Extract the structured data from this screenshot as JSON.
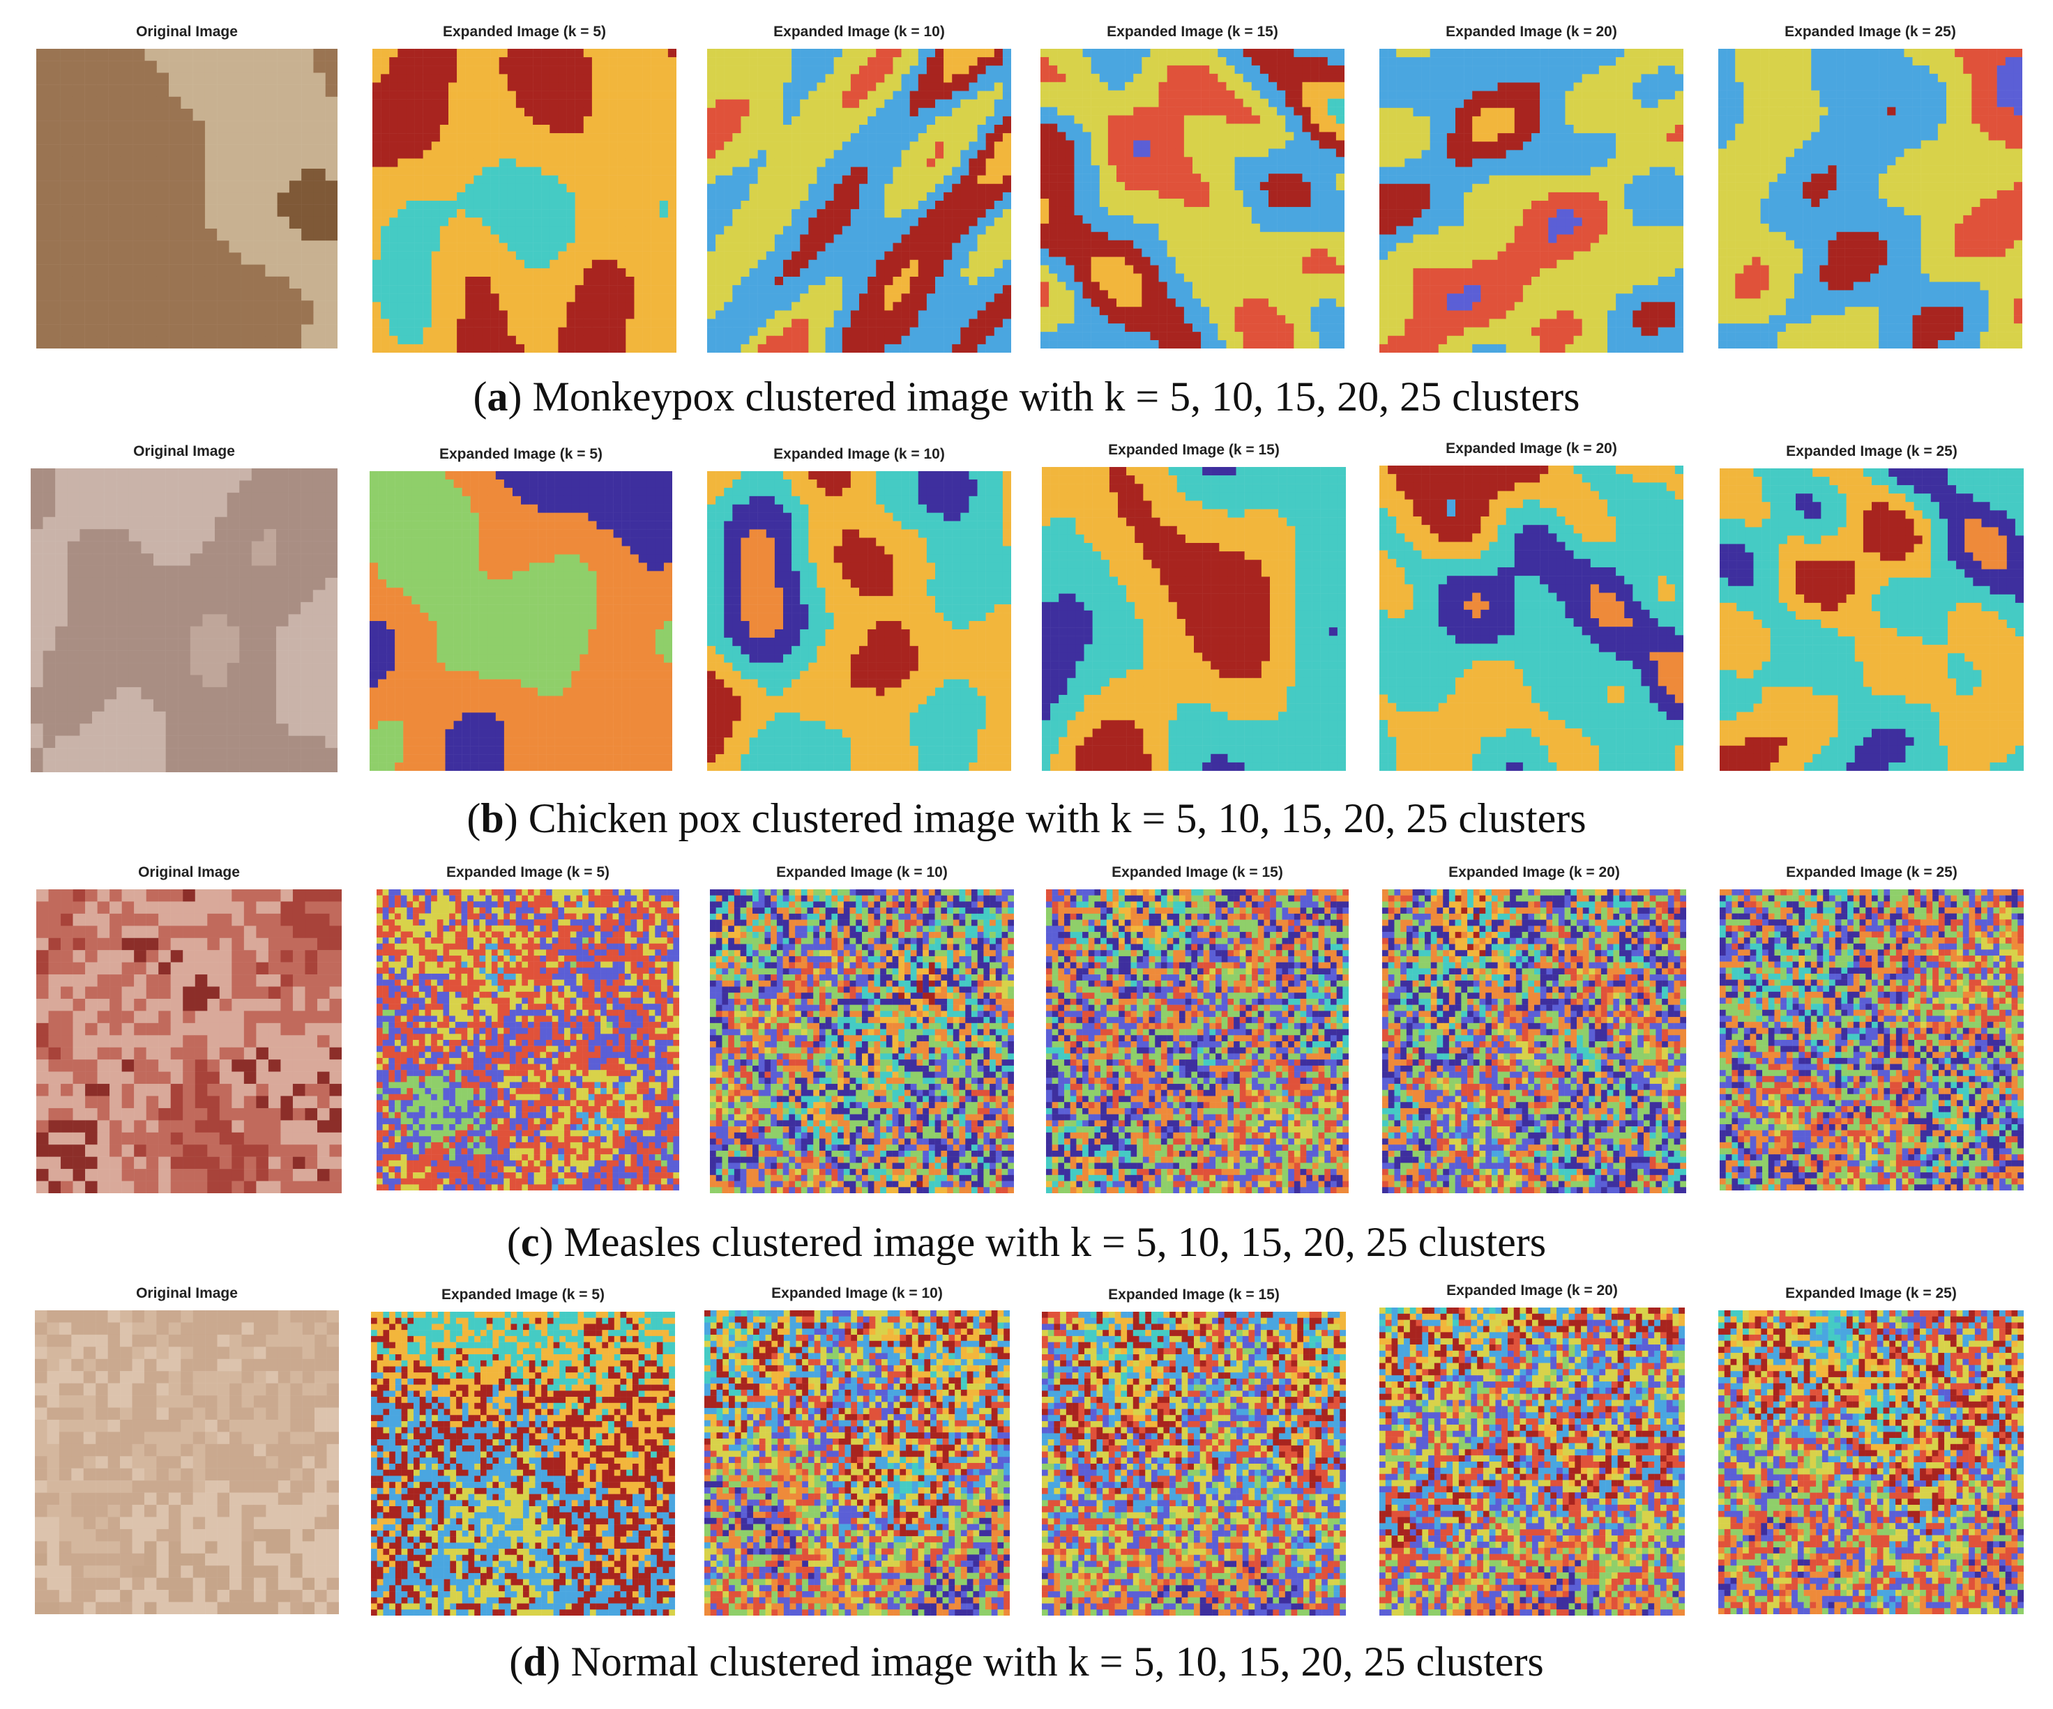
{
  "figure": {
    "rows": [
      {
        "id": "a",
        "letter": "a",
        "caption": " Monkeypox clustered image with k = 5, 10, 15, 20, 25 clusters",
        "original_title": "Original Image",
        "original_palette": [
          "#b89872",
          "#9a7452",
          "#c8b191",
          "#7f5937"
        ],
        "cluster_titles": [
          "Expanded Image (k = 5)",
          "Expanded Image (k = 10)",
          "Expanded Image (k = 15)",
          "Expanded Image (k = 20)",
          "Expanded Image (k = 25)"
        ]
      },
      {
        "id": "b",
        "letter": "b",
        "caption": " Chicken pox clustered image with k = 5, 10, 15, 20, 25 clusters",
        "original_title": "Original Image",
        "original_palette": [
          "#bfa69a",
          "#a98e83",
          "#c9b3a9",
          "#94796f"
        ],
        "cluster_titles": [
          "Expanded Image (k = 5)",
          "Expanded Image (k = 10)",
          "Expanded Image (k = 15)",
          "Expanded Image (k = 20)",
          "Expanded Image (k = 25)"
        ]
      },
      {
        "id": "c",
        "letter": "c",
        "caption": " Measles clustered image with k = 5, 10, 15, 20, 25 clusters",
        "original_title": "Original Image",
        "original_palette": [
          "#a8433a",
          "#c16a5c",
          "#d9a99a",
          "#8c2e29"
        ],
        "cluster_titles": [
          "Expanded Image (k = 5)",
          "Expanded Image (k = 10)",
          "Expanded Image (k = 15)",
          "Expanded Image (k = 20)",
          "Expanded Image (k = 25)"
        ]
      },
      {
        "id": "d",
        "letter": "d",
        "caption": " Normal clustered image with k = 5, 10, 15, 20, 25 clusters",
        "original_title": "Original Image",
        "original_palette": [
          "#d4b79e",
          "#caa98f",
          "#dcc3ad",
          "#c6a58a"
        ],
        "cluster_titles": [
          "Expanded Image (k = 5)",
          "Expanded Image (k = 10)",
          "Expanded Image (k = 15)",
          "Expanded Image (k = 20)",
          "Expanded Image (k = 25)"
        ]
      }
    ],
    "cluster_palette": [
      "#3e2f9e",
      "#5b5fd6",
      "#4aa6e0",
      "#45cbc4",
      "#8fcf6a",
      "#d8d24a",
      "#f2b63c",
      "#ee8a3a",
      "#e0523a",
      "#a8241f"
    ]
  }
}
